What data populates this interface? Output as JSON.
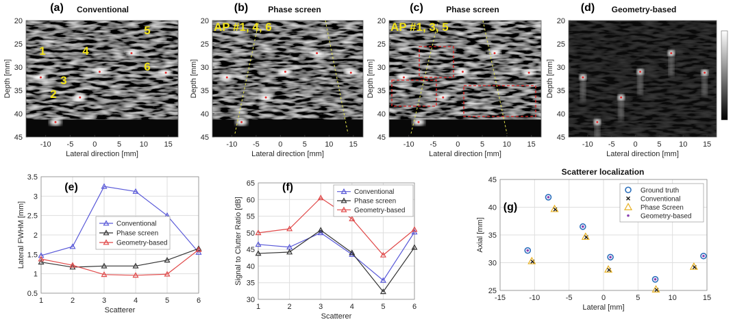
{
  "chart_data": [
    {
      "type": "image",
      "label": "(a)",
      "title": "Conventional",
      "xlabel": "Lateral direction [mm]",
      "ylabel": "Depth [mm]",
      "xlim": [
        -14,
        17
      ],
      "ylim": [
        20,
        45
      ],
      "y_inverted": true,
      "xticks": [
        -10,
        -5,
        0,
        5,
        10,
        15
      ],
      "yticks": [
        20,
        25,
        30,
        35,
        40,
        45
      ],
      "annotations": [
        "1",
        "2",
        "3",
        "4",
        "5",
        "6"
      ]
    },
    {
      "type": "image",
      "label": "(b)",
      "title": "Phase screen",
      "xlabel": "Lateral direction [mm]",
      "ylabel": "Depth [mm]",
      "xlim": [
        -14,
        17
      ],
      "ylim": [
        20,
        45
      ],
      "y_inverted": true,
      "xticks": [
        -10,
        -5,
        0,
        5,
        10,
        15
      ],
      "yticks": [
        20,
        25,
        30,
        35,
        40,
        45
      ],
      "annotations": [
        "AP #1, 4, 6"
      ]
    },
    {
      "type": "image",
      "label": "(c)",
      "title": "Phase screen",
      "xlabel": "Lateral direction [mm]",
      "ylabel": "Depth [mm]",
      "xlim": [
        -14,
        17
      ],
      "ylim": [
        20,
        45
      ],
      "y_inverted": true,
      "xticks": [
        -10,
        -5,
        0,
        5,
        10,
        15
      ],
      "yticks": [
        20,
        25,
        30,
        35,
        40,
        45
      ],
      "annotations": [
        "AP #1, 3, 5"
      ]
    },
    {
      "type": "image",
      "label": "(d)",
      "title": "Geometry-based",
      "xlabel": "Lateral direction [mm]",
      "ylabel": "Depth [mm]",
      "xlim": [
        -14,
        17
      ],
      "ylim": [
        20,
        45
      ],
      "y_inverted": true,
      "xticks": [
        -10,
        -5,
        0,
        5,
        10,
        15
      ],
      "yticks": [
        20,
        25,
        30,
        35,
        40,
        45
      ],
      "annotations": []
    },
    {
      "type": "line",
      "label": "(e)",
      "xlabel": "Scatterer",
      "ylabel": "Lateral FWHM [mm]",
      "grid": true,
      "legend": "center",
      "x": [
        1,
        2,
        3,
        4,
        5,
        6
      ],
      "xlim": [
        1,
        6
      ],
      "xticks": [
        1,
        2,
        3,
        4,
        5,
        6
      ],
      "ylim": [
        0.5,
        3.5
      ],
      "yticks": [
        0.5,
        1,
        1.5,
        2,
        2.5,
        3,
        3.5
      ],
      "series": [
        {
          "name": "Conventional",
          "color": "#5858d8",
          "values": [
            1.47,
            1.7,
            3.25,
            3.12,
            2.5,
            1.55
          ]
        },
        {
          "name": "Phase screen",
          "color": "#333333",
          "values": [
            1.3,
            1.17,
            1.2,
            1.2,
            1.35,
            1.65
          ]
        },
        {
          "name": "Geometry-based",
          "color": "#e04848",
          "values": [
            1.38,
            1.22,
            0.98,
            0.96,
            0.99,
            1.62
          ]
        }
      ]
    },
    {
      "type": "line",
      "label": "(f)",
      "xlabel": "Scatterer",
      "ylabel": "Signal to Clutter Ratio [dB]",
      "grid": true,
      "legend": "top-right",
      "x": [
        1,
        2,
        3,
        4,
        5,
        6
      ],
      "xlim": [
        1,
        6
      ],
      "xticks": [
        1,
        2,
        3,
        4,
        5,
        6
      ],
      "ylim": [
        30,
        65
      ],
      "yticks": [
        30,
        35,
        40,
        45,
        50,
        55,
        60,
        65
      ],
      "series": [
        {
          "name": "Conventional",
          "color": "#5858d8",
          "values": [
            46.5,
            45.7,
            50,
            43.5,
            35.7,
            50.2
          ]
        },
        {
          "name": "Phase screen",
          "color": "#333333",
          "values": [
            43.8,
            44.2,
            50.8,
            44,
            32.3,
            45.6
          ]
        },
        {
          "name": "Geometry-based",
          "color": "#e04848",
          "values": [
            50,
            51.2,
            60.5,
            54.2,
            43.3,
            51
          ]
        }
      ]
    },
    {
      "type": "scatter",
      "label": "(g)",
      "title": "Scatterer localization",
      "xlabel": "Lateral [mm]",
      "ylabel": "Axial [mm]",
      "grid": true,
      "legend": "top-right",
      "xlim": [
        -15,
        15
      ],
      "xticks": [
        -15,
        -10,
        -5,
        0,
        5,
        10,
        15
      ],
      "ylim": [
        25,
        45
      ],
      "yticks": [
        25,
        30,
        35,
        40,
        45
      ],
      "series": [
        {
          "name": "Ground truth",
          "color": "#2a6ebb",
          "marker": "circle",
          "x": [
            -11,
            -8,
            -3,
            1,
            7.5,
            14.5
          ],
          "values": [
            32.2,
            41.8,
            36.5,
            31,
            27,
            31.2
          ]
        },
        {
          "name": "Conventional",
          "color": "#111111",
          "marker": "x",
          "x": [
            -10.3,
            -7,
            -2.5,
            0.8,
            7.7,
            13.2
          ],
          "values": [
            30.2,
            39.6,
            34.6,
            28.7,
            25.1,
            29.2
          ]
        },
        {
          "name": "Phase Screen",
          "color": "#e8b020",
          "marker": "triangle",
          "x": [
            -10.4,
            -7.1,
            -2.6,
            0.7,
            7.6,
            13.1
          ],
          "values": [
            30.3,
            39.7,
            34.7,
            28.8,
            25.2,
            29.3
          ]
        },
        {
          "name": "Geometry-based",
          "color": "#8a3fb0",
          "marker": "dot",
          "x": [
            -11,
            -8,
            -3,
            1,
            7.5,
            14.5
          ],
          "values": [
            32.2,
            41.8,
            36.5,
            31,
            27,
            31.2
          ]
        }
      ]
    }
  ]
}
